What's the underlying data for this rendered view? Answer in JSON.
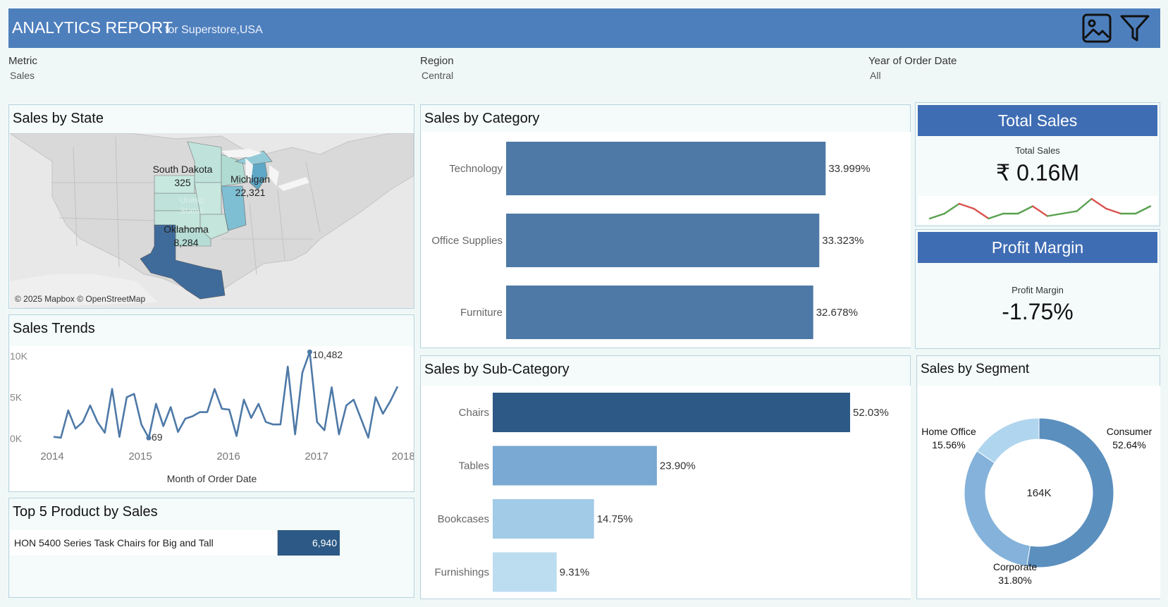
{
  "header": {
    "title": "ANALYTICS REPORT",
    "subtitle": "for Superstore,USA",
    "image_icon": "image-icon",
    "filter_icon": "filter-icon"
  },
  "filters": [
    {
      "label": "Metric",
      "value": "Sales"
    },
    {
      "label": "Region",
      "value": "Central"
    },
    {
      "label": "Year of Order Date",
      "value": "All"
    }
  ],
  "map": {
    "title": "Sales by State",
    "attribution": "© 2025 Mapbox © OpenStreetMap",
    "faint_label": "United States",
    "labels": [
      {
        "name": "South Dakota",
        "value": "325"
      },
      {
        "name": "Michigan",
        "value": "22,321"
      },
      {
        "name": "Oklahoma",
        "value": "8,284"
      }
    ]
  },
  "category": {
    "title": "Sales by Category",
    "chart_data": {
      "type": "bar",
      "categories": [
        "Technology",
        "Office Supplies",
        "Furniture"
      ],
      "values": [
        33.999,
        33.323,
        32.678
      ],
      "labels": [
        "33.999%",
        "33.323%",
        "32.678%"
      ],
      "color": "#4e79a7"
    }
  },
  "subcategory": {
    "title": "Sales by Sub-Category",
    "chart_data": {
      "type": "bar",
      "categories": [
        "Chairs",
        "Tables",
        "Bookcases",
        "Furnishings"
      ],
      "values": [
        52.03,
        23.9,
        14.75,
        9.31
      ],
      "labels": [
        "52.03%",
        "23.90%",
        "14.75%",
        "9.31%"
      ],
      "colors": [
        "#2c5985",
        "#7aa9d3",
        "#a2cbe7",
        "#bcdcf0"
      ]
    }
  },
  "trends": {
    "title": "Sales Trends",
    "xlabel": "Month of Order Date",
    "chart_data": {
      "type": "line",
      "yticks": [
        "0K",
        "5K",
        "10K"
      ],
      "xticks": [
        "2014",
        "2015",
        "2016",
        "2017",
        "2018"
      ],
      "ylim": [
        0,
        10500
      ],
      "values": [
        200,
        100,
        3400,
        1200,
        2000,
        4000,
        2000,
        700,
        6000,
        200,
        5000,
        5400,
        1700,
        69,
        4200,
        1500,
        3800,
        800,
        2400,
        2700,
        3200,
        3200,
        6000,
        3600,
        3500,
        300,
        4700,
        2500,
        4200,
        2000,
        1700,
        1700,
        8700,
        500,
        8000,
        10482,
        2000,
        1000,
        6200,
        500,
        4000,
        4700,
        2400,
        100,
        5000,
        3000,
        4500,
        6300
      ],
      "annotations": [
        {
          "label": "10,482",
          "index": 35
        },
        {
          "label": "69",
          "index": 13
        }
      ]
    }
  },
  "top5": {
    "title": "Top 5 Product by Sales",
    "rows": [
      {
        "name": "HON 5400 Series Task Chairs for Big and Tall",
        "value": "6,940"
      }
    ]
  },
  "total_sales": {
    "title": "Total Sales",
    "label": "Total Sales",
    "value": "₹ 0.16M",
    "spark": [
      3,
      5,
      9,
      7,
      3,
      5,
      5,
      8,
      4,
      5,
      6,
      11,
      7,
      5,
      5,
      8
    ]
  },
  "profit_margin": {
    "title": "Profit Margin",
    "label": "Profit Margin",
    "value": "-1.75%"
  },
  "segment": {
    "title": "Sales by Segment",
    "center_label": "164K",
    "chart_data": {
      "type": "pie",
      "segments": [
        {
          "name": "Consumer",
          "value": 52.64,
          "label": "52.64%",
          "color": "#5b8fbe"
        },
        {
          "name": "Corporate",
          "value": 31.8,
          "label": "31.80%",
          "color": "#84b2da"
        },
        {
          "name": "Home Office",
          "value": 15.56,
          "label": "15.56%",
          "color": "#b0d5ee"
        }
      ]
    }
  }
}
